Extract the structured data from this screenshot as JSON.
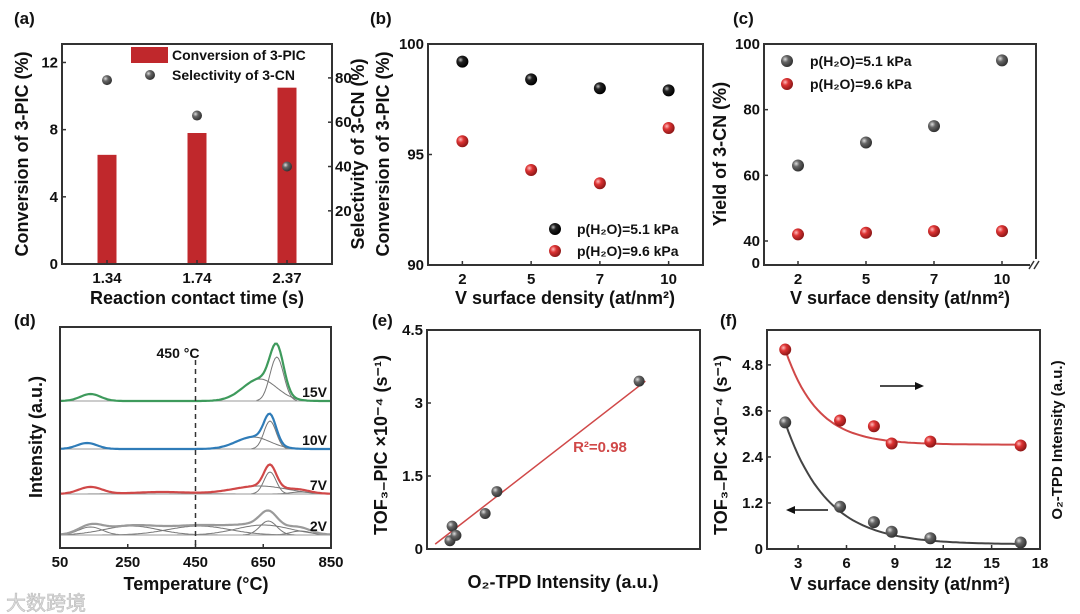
{
  "colors": {
    "bar": "#c0282c",
    "red_point": "#d03838",
    "black_point": "#151515",
    "gray_point": "#5a5a5a",
    "green": "#3e9a5c",
    "blue": "#2f7cb8",
    "red_curve": "#d04848",
    "gray_curve": "#9a9a9a",
    "fit_red": "#d04848",
    "fit_gray": "#444444"
  },
  "watermark": "大数跨境",
  "chart_data": [
    {
      "panel": "(a)",
      "type": "bar",
      "categories": [
        "1.34",
        "1.74",
        "2.37"
      ],
      "series": [
        {
          "name": "Conversion of 3-PIC",
          "values": [
            6.5,
            7.8,
            10.5
          ],
          "axis": "left",
          "mark": "bar"
        },
        {
          "name": "Selectivity of 3-CN",
          "values": [
            79,
            63,
            40
          ],
          "axis": "right",
          "mark": "scatter"
        }
      ],
      "xlabel": "Reaction contact time (s)",
      "ylabel": "Conversion of 3-PIC (%)",
      "ylabel_right": "Selectivity of 3-CN (%)",
      "ylim": [
        0,
        13.1
      ],
      "yticks": [
        0,
        4,
        8,
        12
      ],
      "ylim_right": [
        -4,
        95.3
      ],
      "yticks_right": [
        20,
        40,
        60,
        80
      ],
      "legend": "top-right"
    },
    {
      "panel": "(b)",
      "type": "scatter",
      "categories": [
        "2",
        "5",
        "7",
        "10"
      ],
      "series": [
        {
          "name": "p(H₂O)=5.1 kPa",
          "values": [
            99.2,
            98.4,
            98.0,
            97.9
          ],
          "color": "black"
        },
        {
          "name": "p(H₂O)=9.6 kPa",
          "values": [
            95.6,
            94.3,
            93.7,
            96.2
          ],
          "color": "red"
        }
      ],
      "xlabel": "V surface density (at/nm²)",
      "ylabel": "Conversion of 3-PIC (%)",
      "ylim": [
        90,
        100
      ],
      "yticks": [
        90,
        95,
        100
      ],
      "legend": "bottom-right"
    },
    {
      "panel": "(c)",
      "type": "scatter",
      "categories": [
        "2",
        "5",
        "7",
        "10"
      ],
      "series": [
        {
          "name": "p(H₂O)=5.1 kPa",
          "values": [
            63,
            70,
            75,
            95
          ],
          "color": "gray"
        },
        {
          "name": "p(H₂O)=9.6 kPa",
          "values": [
            42,
            42.5,
            43,
            43
          ],
          "color": "red"
        }
      ],
      "xlabel": "V surface density (at/nm²)",
      "ylabel": "Yield of 3-CN (%)",
      "ylim": [
        33.3,
        100
      ],
      "yticks": [
        40,
        60,
        80,
        100
      ],
      "ytick_break_label": "0",
      "legend": "top-left"
    },
    {
      "panel": "(d)",
      "type": "line",
      "xlabel": "Temperature (°C)",
      "ylabel": "Intensity (a.u.)",
      "xlim": [
        50,
        850
      ],
      "xticks": [
        50,
        250,
        450,
        650,
        850
      ],
      "ylim": [
        -13,
        208
      ],
      "annotation": {
        "x": 450,
        "label": "450 °C"
      },
      "series": [
        {
          "name": "15V",
          "offset": 134,
          "color": "green",
          "peaks": [
            [
              140,
              7,
              30
            ],
            [
              640,
              22,
              50
            ],
            [
              690,
              44,
              20
            ]
          ]
        },
        {
          "name": "10V",
          "offset": 86,
          "color": "blue",
          "peaks": [
            [
              130,
              6,
              30
            ],
            [
              620,
              12,
              50
            ],
            [
              670,
              28,
              18
            ]
          ]
        },
        {
          "name": "7V",
          "offset": 41,
          "color": "red_curve",
          "peaks": [
            [
              140,
              7,
              35
            ],
            [
              350,
              2,
              80
            ],
            [
              640,
              8,
              80
            ],
            [
              670,
              22,
              18
            ],
            [
              760,
              2,
              30
            ]
          ]
        },
        {
          "name": "2V",
          "offset": 0,
          "color": "gray_curve",
          "peaks": [
            [
              140,
              8,
              35
            ],
            [
              260,
              9,
              80
            ],
            [
              460,
              9,
              90
            ],
            [
              650,
              10,
              80
            ],
            [
              665,
              14,
              25
            ],
            [
              760,
              4,
              30
            ]
          ]
        }
      ]
    },
    {
      "panel": "(e)",
      "type": "scatter",
      "xlabel": "O₂-TPD Intensity (a.u.)",
      "ylabel": "TOF₃₋PIC ×10⁻⁴ (s⁻¹)",
      "xlim": [
        0,
        1
      ],
      "ylim": [
        0,
        4.5
      ],
      "yticks": [
        0,
        1.5,
        3,
        4.5
      ],
      "ytick_labels": [
        "0",
        "1.5",
        "3",
        "4.5"
      ],
      "x": [
        0.084,
        0.092,
        0.106,
        0.213,
        0.256,
        0.777
      ],
      "y": [
        0.17,
        0.47,
        0.28,
        0.73,
        1.18,
        3.45
      ],
      "fit": {
        "x": [
          0.03,
          0.8
        ],
        "y": [
          0.1,
          3.45
        ],
        "label": "R²=0.98",
        "r2": 0.98
      }
    },
    {
      "panel": "(f)",
      "type": "scatter",
      "xlabel": "V surface density (at/nm²)",
      "ylabel": "TOF₃₋PIC ×10⁻⁴ (s⁻¹)",
      "ylabel_right": "O₂-TPD Intensity (a.u.)",
      "xlim": [
        1.07,
        18
      ],
      "xticks": [
        3,
        6,
        9,
        12,
        15,
        18
      ],
      "ylim": [
        0,
        5.71
      ],
      "yticks": [
        0,
        1.2,
        2.4,
        3.6,
        4.8
      ],
      "ytick_labels": [
        "0",
        "1.2",
        "2.4",
        "3.6",
        "4.8"
      ],
      "series": [
        {
          "name": "TOF",
          "axis": "left",
          "color": "gray",
          "x": [
            2.2,
            5.6,
            7.7,
            8.8,
            11.2,
            16.8
          ],
          "y": [
            3.3,
            1.1,
            0.7,
            0.45,
            0.28,
            0.17
          ],
          "fit": {
            "a": 0.12,
            "b": 7.4,
            "t": 2.6
          }
        },
        {
          "name": "O2-TPD Intensity",
          "axis": "right",
          "color": "red",
          "x": [
            2.2,
            5.6,
            7.7,
            8.8,
            11.2,
            16.8
          ],
          "y": [
            5.2,
            3.35,
            3.2,
            2.75,
            2.8,
            2.7
          ],
          "fit": {
            "a": 2.72,
            "b": 7.45,
            "t": 2.0
          }
        }
      ]
    }
  ]
}
